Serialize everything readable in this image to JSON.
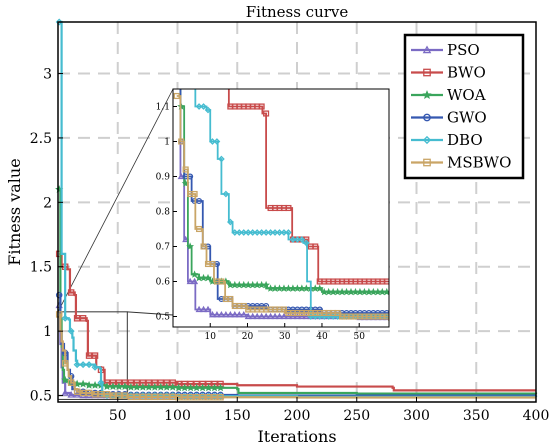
{
  "chart_data": {
    "type": "line",
    "title": "Fitness curve",
    "xlabel": "Iterations",
    "ylabel": "Fitness value",
    "xlim": [
      0,
      400
    ],
    "ylim": [
      0.45,
      3.4
    ],
    "xticks": [
      "50",
      "100",
      "150",
      "200",
      "250",
      "300",
      "350",
      "400"
    ],
    "yticks": [
      "0.5",
      "1",
      "1.5",
      "2",
      "2.5",
      "3"
    ],
    "grid": true,
    "legend_position": "top-right",
    "series": [
      {
        "name": "PSO",
        "color": "#7b6bc4",
        "marker": "triangle",
        "points": [
          [
            1,
            1.2
          ],
          [
            2,
            0.9
          ],
          [
            3,
            0.72
          ],
          [
            4,
            0.6
          ],
          [
            6,
            0.52
          ],
          [
            10,
            0.505
          ],
          [
            20,
            0.5
          ],
          [
            50,
            0.497
          ],
          [
            100,
            0.495
          ],
          [
            200,
            0.493
          ],
          [
            400,
            0.492
          ]
        ]
      },
      {
        "name": "BWO",
        "color": "#c84b4b",
        "marker": "square",
        "points": [
          [
            1,
            1.6
          ],
          [
            3,
            1.5
          ],
          [
            8,
            1.48
          ],
          [
            10,
            1.3
          ],
          [
            14,
            1.28
          ],
          [
            15,
            1.1
          ],
          [
            24,
            1.08
          ],
          [
            25,
            0.81
          ],
          [
            31,
            0.81
          ],
          [
            32,
            0.72
          ],
          [
            36,
            0.7
          ],
          [
            39,
            0.6
          ],
          [
            60,
            0.6
          ],
          [
            100,
            0.59
          ],
          [
            150,
            0.58
          ],
          [
            200,
            0.57
          ],
          [
            280,
            0.56
          ],
          [
            281,
            0.54
          ],
          [
            400,
            0.54
          ]
        ]
      },
      {
        "name": "WOA",
        "color": "#3aa55c",
        "marker": "star",
        "points": [
          [
            1,
            2.1
          ],
          [
            2,
            1.1
          ],
          [
            3,
            0.88
          ],
          [
            4,
            0.7
          ],
          [
            5,
            0.62
          ],
          [
            7,
            0.61
          ],
          [
            10,
            0.6
          ],
          [
            15,
            0.59
          ],
          [
            25,
            0.58
          ],
          [
            40,
            0.57
          ],
          [
            58,
            0.565
          ],
          [
            100,
            0.56
          ],
          [
            150,
            0.55
          ],
          [
            151,
            0.52
          ],
          [
            250,
            0.515
          ],
          [
            400,
            0.51
          ]
        ]
      },
      {
        "name": "GWO",
        "color": "#3558b0",
        "marker": "circle",
        "points": [
          [
            1,
            1.28
          ],
          [
            2,
            1.0
          ],
          [
            3,
            0.9
          ],
          [
            5,
            0.83
          ],
          [
            7,
            0.83
          ],
          [
            8,
            0.7
          ],
          [
            10,
            0.65
          ],
          [
            12,
            0.55
          ],
          [
            16,
            0.53
          ],
          [
            25,
            0.52
          ],
          [
            40,
            0.51
          ],
          [
            58,
            0.505
          ],
          [
            150,
            0.5
          ],
          [
            400,
            0.5
          ]
        ]
      },
      {
        "name": "DBO",
        "color": "#45bcd0",
        "marker": "diamond",
        "points": [
          [
            1,
            3.4
          ],
          [
            3,
            1.6
          ],
          [
            6,
            1.1
          ],
          [
            9,
            1.09
          ],
          [
            10,
            1.0
          ],
          [
            12,
            0.95
          ],
          [
            13,
            0.85
          ],
          [
            15,
            0.77
          ],
          [
            16,
            0.74
          ],
          [
            30,
            0.74
          ],
          [
            31,
            0.72
          ],
          [
            35,
            0.71
          ],
          [
            36,
            0.6
          ],
          [
            37,
            0.5
          ],
          [
            58,
            0.5
          ],
          [
            100,
            0.495
          ],
          [
            200,
            0.49
          ],
          [
            400,
            0.488
          ]
        ]
      },
      {
        "name": "MSBWO",
        "color": "#c9a566",
        "marker": "square",
        "points": [
          [
            1,
            1.13
          ],
          [
            2,
            1.0
          ],
          [
            3,
            0.92
          ],
          [
            4,
            0.85
          ],
          [
            6,
            0.75
          ],
          [
            8,
            0.7
          ],
          [
            9,
            0.65
          ],
          [
            11,
            0.6
          ],
          [
            14,
            0.55
          ],
          [
            16,
            0.53
          ],
          [
            20,
            0.52
          ],
          [
            30,
            0.51
          ],
          [
            45,
            0.5
          ],
          [
            58,
            0.49
          ],
          [
            100,
            0.487
          ],
          [
            200,
            0.485
          ],
          [
            400,
            0.485
          ]
        ]
      }
    ],
    "inset": {
      "xlim": [
        0,
        58
      ],
      "ylim": [
        0.47,
        1.15
      ],
      "xticks": [
        "10",
        "20",
        "30",
        "40",
        "50"
      ],
      "yticks": [
        "0.5",
        "0.6",
        "0.7",
        "0.8",
        "0.9",
        "1",
        "1.1"
      ]
    }
  }
}
